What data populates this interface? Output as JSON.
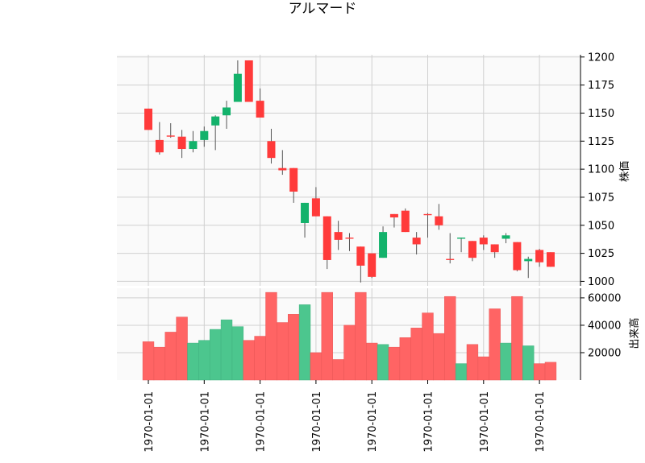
{
  "chart_data": {
    "type": "candlestick",
    "title": "アルマード",
    "price_panel": {
      "ylabel": "株価",
      "ylim": [
        996,
        1202
      ],
      "yticks": [
        1000,
        1025,
        1050,
        1075,
        1100,
        1125,
        1150,
        1175,
        1200
      ],
      "grid": true
    },
    "volume_panel": {
      "ylabel": "出来高",
      "ylim": [
        0,
        67000
      ],
      "yticks": [
        20000,
        40000,
        60000
      ],
      "grid": true
    },
    "x_tick_labels": [
      "1970-01-01",
      "1970-01-01",
      "1970-01-01",
      "1970-01-01",
      "1970-01-01",
      "1970-01-01",
      "1970-01-01",
      "1970-01-01"
    ],
    "x_tick_at_candle": [
      0,
      5,
      10,
      15,
      20,
      25,
      30,
      35
    ],
    "colors": {
      "up": "#13b26b",
      "down": "#ff3a3a",
      "up_volume": "#4cc68e",
      "down_volume": "#ff6464",
      "wick": "#555555"
    },
    "candles": [
      {
        "open": 1154,
        "high": 1154,
        "low": 1135,
        "close": 1135,
        "volume": 28000
      },
      {
        "open": 1126,
        "high": 1142,
        "low": 1113,
        "close": 1115,
        "volume": 24000
      },
      {
        "open": 1130,
        "high": 1141,
        "low": 1128,
        "close": 1129,
        "volume": 35000
      },
      {
        "open": 1129,
        "high": 1135,
        "low": 1110,
        "close": 1118,
        "volume": 46000
      },
      {
        "open": 1118,
        "high": 1134,
        "low": 1115,
        "close": 1125,
        "volume": 27000
      },
      {
        "open": 1126,
        "high": 1138,
        "low": 1120,
        "close": 1134,
        "volume": 29000
      },
      {
        "open": 1139,
        "high": 1148,
        "low": 1117,
        "close": 1147,
        "volume": 37000
      },
      {
        "open": 1148,
        "high": 1161,
        "low": 1136,
        "close": 1155,
        "volume": 44000
      },
      {
        "open": 1160,
        "high": 1197,
        "low": 1160,
        "close": 1185,
        "volume": 39000
      },
      {
        "open": 1197,
        "high": 1197,
        "low": 1160,
        "close": 1160,
        "volume": 29000
      },
      {
        "open": 1161,
        "high": 1172,
        "low": 1146,
        "close": 1146,
        "volume": 32000
      },
      {
        "open": 1125,
        "high": 1136,
        "low": 1105,
        "close": 1110,
        "volume": 64000
      },
      {
        "open": 1101,
        "high": 1117,
        "low": 1095,
        "close": 1099,
        "volume": 42000
      },
      {
        "open": 1101,
        "high": 1101,
        "low": 1070,
        "close": 1080,
        "volume": 48000
      },
      {
        "open": 1052,
        "high": 1070,
        "low": 1039,
        "close": 1070,
        "volume": 55000
      },
      {
        "open": 1074,
        "high": 1084,
        "low": 1058,
        "close": 1058,
        "volume": 20000
      },
      {
        "open": 1058,
        "high": 1058,
        "low": 1011,
        "close": 1019,
        "volume": 64000
      },
      {
        "open": 1044,
        "high": 1054,
        "low": 1028,
        "close": 1037,
        "volume": 15000
      },
      {
        "open": 1039,
        "high": 1043,
        "low": 1027,
        "close": 1038,
        "volume": 40000
      },
      {
        "open": 1031,
        "high": 1031,
        "low": 999,
        "close": 1014,
        "volume": 64000
      },
      {
        "open": 1025,
        "high": 1025,
        "low": 1003,
        "close": 1004,
        "volume": 27000
      },
      {
        "open": 1021,
        "high": 1049,
        "low": 1021,
        "close": 1044,
        "volume": 26000
      },
      {
        "open": 1060,
        "high": 1060,
        "low": 1048,
        "close": 1057,
        "volume": 24000
      },
      {
        "open": 1063,
        "high": 1065,
        "low": 1044,
        "close": 1044,
        "volume": 31000
      },
      {
        "open": 1039,
        "high": 1044,
        "low": 1024,
        "close": 1033,
        "volume": 38000
      },
      {
        "open": 1060,
        "high": 1061,
        "low": 1039,
        "close": 1059,
        "volume": 49000
      },
      {
        "open": 1058,
        "high": 1069,
        "low": 1046,
        "close": 1050,
        "volume": 34000
      },
      {
        "open": 1020,
        "high": 1043,
        "low": 1016,
        "close": 1019,
        "volume": 61000
      },
      {
        "open": 1038,
        "high": 1039,
        "low": 1026,
        "close": 1039,
        "volume": 12000
      },
      {
        "open": 1036,
        "high": 1036,
        "low": 1018,
        "close": 1021,
        "volume": 26000
      },
      {
        "open": 1039,
        "high": 1041,
        "low": 1028,
        "close": 1033,
        "volume": 17000
      },
      {
        "open": 1033,
        "high": 1033,
        "low": 1021,
        "close": 1026,
        "volume": 52000
      },
      {
        "open": 1038,
        "high": 1043,
        "low": 1034,
        "close": 1041,
        "volume": 27000
      },
      {
        "open": 1035,
        "high": 1035,
        "low": 1009,
        "close": 1010,
        "volume": 61000
      },
      {
        "open": 1018,
        "high": 1022,
        "low": 1003,
        "close": 1020,
        "volume": 25000
      },
      {
        "open": 1028,
        "high": 1029,
        "low": 1013,
        "close": 1017,
        "volume": 12000
      },
      {
        "open": 1026,
        "high": 1026,
        "low": 1013,
        "close": 1013,
        "volume": 13000
      }
    ]
  }
}
